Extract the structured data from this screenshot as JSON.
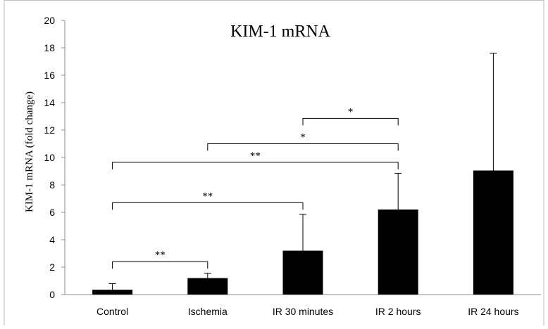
{
  "chart_data": {
    "type": "bar",
    "title": "KIM-1 mRNA",
    "ylabel": "KIM-1 mRNA (fold change)",
    "xlabel": "",
    "ylim": [
      0,
      20
    ],
    "yticks": [
      "0",
      "2",
      "4",
      "6",
      "8",
      "10",
      "12",
      "14",
      "16",
      "18",
      "20"
    ],
    "grid": false,
    "categories": [
      "Control",
      "Ischemia",
      "IR 30 minutes",
      "IR 2 hours",
      "IR 24 hours"
    ],
    "values": [
      0.35,
      1.2,
      3.2,
      6.2,
      9.05
    ],
    "error_upper": [
      0.8,
      1.55,
      5.85,
      8.85,
      17.6
    ],
    "bar_color": "#000000",
    "significance": [
      {
        "from": "Control",
        "to": "Ischemia",
        "level": 2.4,
        "label": "**"
      },
      {
        "from": "Control",
        "to": "IR 30 minutes",
        "level": 6.7,
        "label": "**"
      },
      {
        "from": "Control",
        "to": "IR 2 hours",
        "level": 9.65,
        "label": "**"
      },
      {
        "from": "Ischemia",
        "to": "IR 2 hours",
        "level": 11.0,
        "label": "*"
      },
      {
        "from": "IR 30 minutes",
        "to": "IR 2 hours",
        "level": 12.85,
        "label": "*"
      }
    ]
  }
}
